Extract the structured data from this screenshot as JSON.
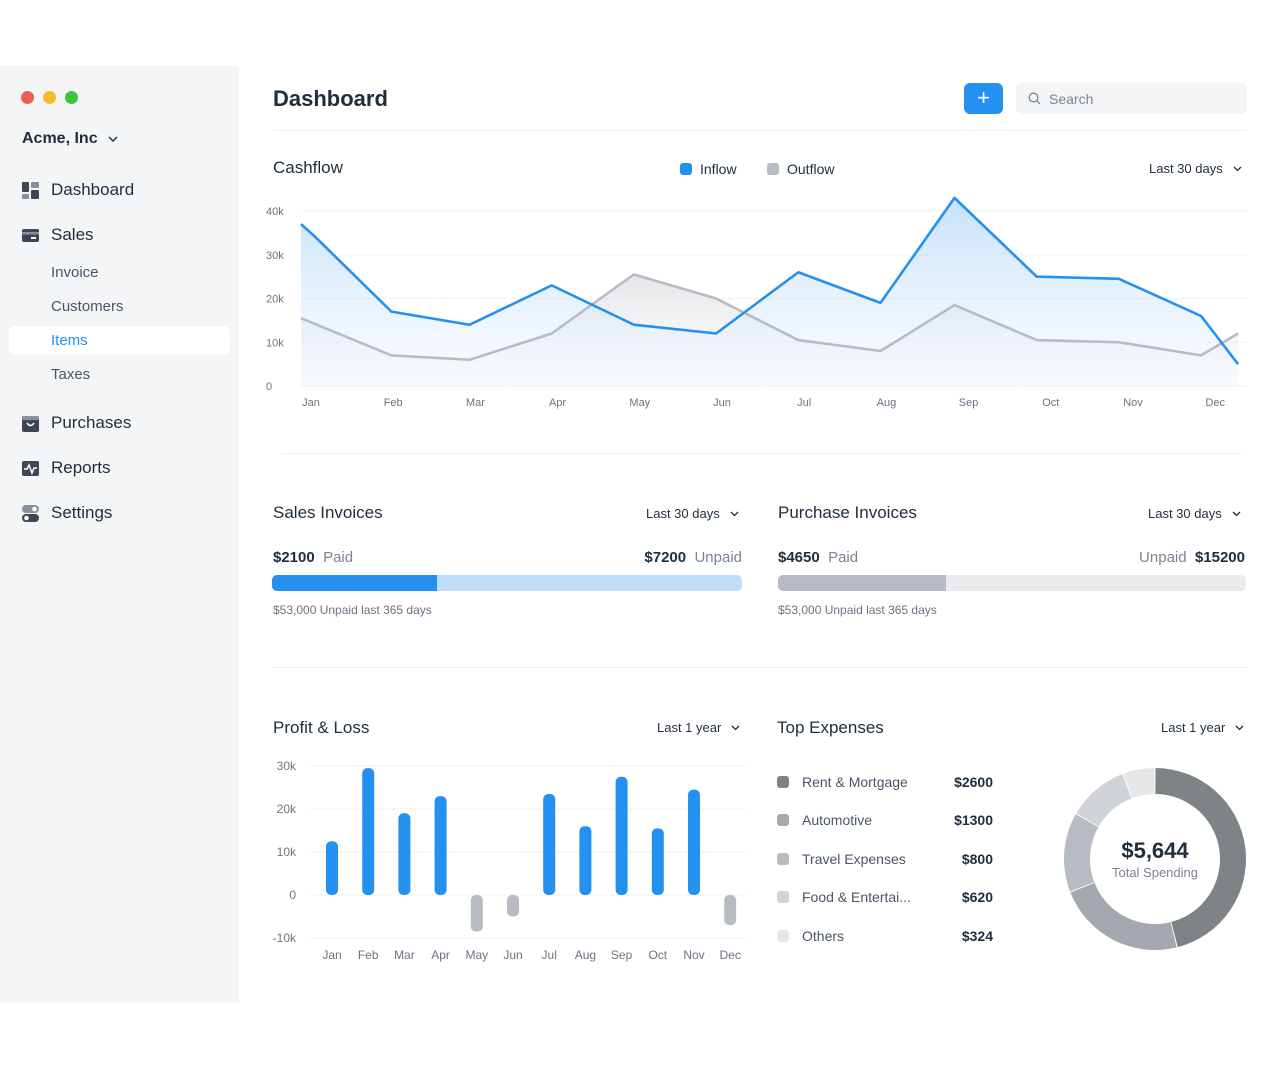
{
  "window_controls": {
    "close_color": "#ec5f57",
    "minimize_color": "#f5bd2e",
    "zoom_color": "#3fc23e"
  },
  "sidebar": {
    "company": "Acme, Inc",
    "items": [
      {
        "label": "Dashboard",
        "icon": "dashboard-icon"
      },
      {
        "label": "Sales",
        "icon": "sales-icon"
      },
      {
        "label": "Invoice"
      },
      {
        "label": "Customers"
      },
      {
        "label": "Items",
        "active": true
      },
      {
        "label": "Taxes"
      },
      {
        "label": "Purchases",
        "icon": "purchases-icon"
      },
      {
        "label": "Reports",
        "icon": "reports-icon"
      },
      {
        "label": "Settings",
        "icon": "settings-icon"
      }
    ]
  },
  "header": {
    "title": "Dashboard",
    "add_label": "+",
    "search_placeholder": "Search"
  },
  "cashflow": {
    "title": "Cashflow",
    "range": "Last 30 days",
    "legend": [
      {
        "name": "Inflow",
        "color": "#2490ef"
      },
      {
        "name": "Outflow",
        "color": "#b7bcc4"
      }
    ]
  },
  "sales_invoices": {
    "title": "Sales Invoices",
    "range": "Last 30 days",
    "paid_amount": "$2100",
    "paid_label": "Paid",
    "unpaid_amount": "$7200",
    "unpaid_label": "Unpaid",
    "paid_fraction": 0.35,
    "note": "$53,000 Unpaid last 365 days",
    "fill_color": "#2490ef",
    "track_color": "#bfdcf8"
  },
  "purchase_invoices": {
    "title": "Purchase Invoices",
    "range": "Last 30 days",
    "paid_amount": "$4650",
    "paid_label": "Paid",
    "unpaid_label": "Unpaid",
    "unpaid_amount": "$15200",
    "paid_fraction": 0.36,
    "note": "$53,000 Unpaid last 365 days",
    "fill_color": "#b7bcc4",
    "track_color": "#eaebed"
  },
  "profit_loss": {
    "title": "Profit & Loss",
    "range": "Last 1 year"
  },
  "top_expenses": {
    "title": "Top Expenses",
    "range": "Last 1 year",
    "total": "$5,644",
    "total_label": "Total Spending",
    "items": [
      {
        "name": "Rent & Mortgage",
        "value": "$2600",
        "color": "#7e8486"
      },
      {
        "name": "Automotive",
        "value": "$1300",
        "color": "#a3a9ae"
      },
      {
        "name": "Travel Expenses",
        "value": "$800",
        "color": "#b7bcc2"
      },
      {
        "name": "Food & Entertai...",
        "value": "$620",
        "color": "#d0d3d7"
      },
      {
        "name": "Others",
        "value": "$324",
        "color": "#e4e6e8"
      }
    ]
  },
  "chart_data": [
    {
      "type": "area",
      "title": "Cashflow",
      "xlabel": "",
      "ylabel": "",
      "categories": [
        "Jan",
        "Feb",
        "Mar",
        "Apr",
        "May",
        "Jun",
        "Jul",
        "Aug",
        "Sep",
        "Oct",
        "Nov",
        "Dec"
      ],
      "yticks": [
        "0",
        "10k",
        "20k",
        "30k",
        "40k"
      ],
      "ylim": [
        0,
        40000
      ],
      "grid": true,
      "legend": "top",
      "series": [
        {
          "name": "Inflow",
          "color": "#2490ef",
          "points": [
            [
              0.0,
              37000
            ],
            [
              0.15,
              34500
            ],
            [
              1.1,
              17000
            ],
            [
              2.05,
              14000
            ],
            [
              3.05,
              23000
            ],
            [
              4.05,
              14000
            ],
            [
              5.05,
              12000
            ],
            [
              6.05,
              26000
            ],
            [
              7.05,
              19000
            ],
            [
              7.95,
              43000
            ],
            [
              8.95,
              25000
            ],
            [
              9.95,
              24500
            ],
            [
              10.95,
              16000
            ],
            [
              11.4,
              5000
            ]
          ]
        },
        {
          "name": "Outflow",
          "color": "#b7bcc4",
          "points": [
            [
              0.0,
              15500
            ],
            [
              1.1,
              7000
            ],
            [
              2.05,
              6000
            ],
            [
              3.05,
              12000
            ],
            [
              4.05,
              25500
            ],
            [
              5.05,
              20000
            ],
            [
              6.05,
              10500
            ],
            [
              7.05,
              8000
            ],
            [
              7.95,
              18500
            ],
            [
              8.95,
              10500
            ],
            [
              9.95,
              10000
            ],
            [
              10.95,
              7000
            ],
            [
              11.4,
              12000
            ]
          ]
        }
      ]
    },
    {
      "type": "bar",
      "title": "Profit & Loss",
      "xlabel": "",
      "ylabel": "",
      "categories": [
        "Jan",
        "Feb",
        "Mar",
        "Apr",
        "May",
        "Jun",
        "Jul",
        "Aug",
        "Sep",
        "Oct",
        "Nov",
        "Dec"
      ],
      "yticks": [
        "-10k",
        "0",
        "10k",
        "20k",
        "30k"
      ],
      "ylim": [
        -10000,
        30000
      ],
      "grid": true,
      "values": [
        12500,
        29500,
        19000,
        23000,
        -8500,
        -5000,
        23500,
        16000,
        27500,
        15500,
        24500,
        -7000
      ],
      "positive_color": "#2490ef",
      "negative_color": "#b7bcc2"
    },
    {
      "type": "pie",
      "title": "Top Expenses",
      "labels": [
        "Rent & Mortgage",
        "Automotive",
        "Travel Expenses",
        "Food & Entertai...",
        "Others"
      ],
      "values": [
        2600,
        1300,
        800,
        620,
        324
      ],
      "donut": true
    }
  ]
}
